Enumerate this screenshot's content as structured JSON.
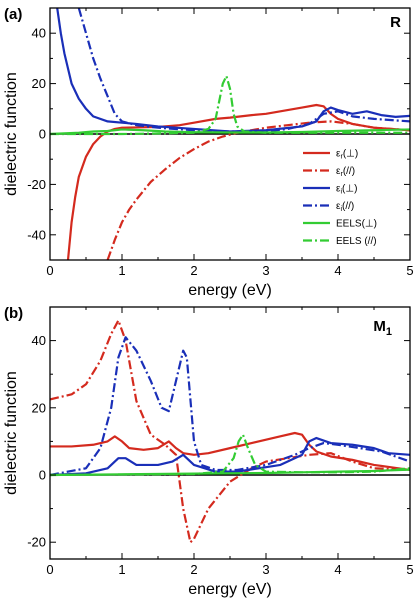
{
  "chart_data": [
    {
      "type": "line",
      "panel_label": "(a)",
      "corner_label": "R",
      "xlabel": "energy (eV)",
      "ylabel": "dielectric function",
      "xlim": [
        0,
        5
      ],
      "ylim": [
        -50,
        50
      ],
      "xticks": [
        "0",
        "1",
        "2",
        "3",
        "4",
        "5"
      ],
      "yticks": [
        "-40",
        "-20",
        "0",
        "20",
        "40"
      ],
      "legend_position": "right",
      "legend": [
        {
          "label": "εr(⊥)",
          "series": "eps_r_perp"
        },
        {
          "label": "εr(//)",
          "series": "eps_r_par"
        },
        {
          "label": "εi(⊥)",
          "series": "eps_i_perp"
        },
        {
          "label": "εi(//)",
          "series": "eps_i_par"
        },
        {
          "label": "EELS(⊥)",
          "series": "eels_perp"
        },
        {
          "label": "EELS (//)",
          "series": "eels_par"
        }
      ],
      "series": [
        {
          "key": "eps_r_perp",
          "color": "#d42a1e",
          "dash": "solid",
          "x": [
            0.25,
            0.3,
            0.35,
            0.4,
            0.5,
            0.6,
            0.7,
            0.8,
            0.9,
            1.0,
            1.2,
            1.5,
            1.8,
            2.0,
            2.3,
            2.5,
            2.8,
            3.0,
            3.3,
            3.5,
            3.7,
            3.8,
            3.9,
            4.0,
            4.2,
            4.5,
            5.0
          ],
          "y": [
            -50,
            -35,
            -25,
            -17,
            -9,
            -4,
            -1,
            1,
            2,
            2.5,
            2.6,
            2.8,
            3.5,
            4.5,
            6,
            6.5,
            7.5,
            8,
            9.5,
            10.5,
            11.5,
            11,
            8,
            6,
            4,
            2.5,
            1.5
          ]
        },
        {
          "key": "eps_r_par",
          "color": "#d42a1e",
          "dash": "dashdot",
          "x": [
            0.8,
            0.9,
            1.0,
            1.1,
            1.2,
            1.4,
            1.6,
            1.8,
            2.0,
            2.2,
            2.4,
            2.6,
            2.8,
            3.0,
            3.3,
            3.6,
            3.9,
            4.2,
            4.5,
            5.0
          ],
          "y": [
            -50,
            -42,
            -35,
            -30,
            -26,
            -19,
            -14,
            -9.5,
            -6,
            -3,
            -1,
            0.5,
            1.5,
            2.5,
            3.5,
            4.5,
            5,
            4,
            2.5,
            1.5
          ]
        },
        {
          "key": "eps_i_perp",
          "color": "#1a2fb8",
          "dash": "solid",
          "x": [
            0.1,
            0.15,
            0.2,
            0.25,
            0.3,
            0.4,
            0.5,
            0.6,
            0.8,
            1.0,
            1.2,
            1.5,
            2.0,
            2.5,
            3.0,
            3.5,
            3.7,
            3.8,
            3.9,
            4.0,
            4.2,
            4.4,
            4.6,
            4.8,
            5.0
          ],
          "y": [
            50,
            40,
            32,
            26,
            20,
            14,
            10,
            7,
            5,
            4.5,
            4,
            3,
            2,
            1,
            1.5,
            3,
            5,
            9,
            10.5,
            9.5,
            8,
            9,
            7.5,
            6.8,
            7.2
          ]
        },
        {
          "key": "eps_i_par",
          "color": "#1a2fb8",
          "dash": "dashdot",
          "x": [
            0.4,
            0.5,
            0.6,
            0.7,
            0.8,
            0.9,
            1.0,
            1.2,
            1.5,
            2.0,
            2.5,
            3.0,
            3.3,
            3.6,
            3.8,
            4.0,
            4.2,
            4.5,
            5.0
          ],
          "y": [
            50,
            40,
            30,
            22,
            15,
            8,
            5,
            3.5,
            2.5,
            1.5,
            1,
            1,
            2,
            4,
            8,
            9,
            7,
            6,
            5
          ]
        },
        {
          "key": "eels_perp",
          "color": "#33cc33",
          "dash": "solid",
          "x": [
            0,
            0.4,
            0.6,
            0.8,
            1.0,
            1.3,
            1.6,
            2.0,
            2.5,
            3.0,
            3.5,
            4.0,
            4.5,
            5.0
          ],
          "y": [
            0,
            0.5,
            1,
            1.2,
            1.8,
            1.5,
            1,
            0.7,
            0.6,
            0.6,
            0.8,
            1.2,
            1.5,
            1.8
          ]
        },
        {
          "key": "eels_par",
          "color": "#33cc33",
          "dash": "dashdot",
          "x": [
            0,
            1.0,
            1.5,
            2.0,
            2.2,
            2.3,
            2.35,
            2.4,
            2.45,
            2.5,
            2.55,
            2.6,
            2.7,
            3.0,
            3.5,
            4.0,
            4.5,
            5.0
          ],
          "y": [
            0,
            0,
            0.2,
            0.5,
            2,
            6,
            13,
            20,
            23,
            18,
            8,
            3,
            1,
            0.5,
            0.5,
            0.5,
            0.5,
            0.5
          ]
        }
      ]
    },
    {
      "type": "line",
      "panel_label": "(b)",
      "corner_label": "M1",
      "xlabel": "energy (eV)",
      "ylabel": "dielectric function",
      "xlim": [
        0,
        5
      ],
      "ylim": [
        -25,
        50
      ],
      "xticks": [
        "0",
        "1",
        "2",
        "3",
        "4",
        "5"
      ],
      "yticks": [
        "-20",
        "0",
        "20",
        "40"
      ],
      "series": [
        {
          "key": "eps_r_perp",
          "color": "#d42a1e",
          "dash": "solid",
          "x": [
            0,
            0.3,
            0.6,
            0.8,
            0.9,
            1.0,
            1.1,
            1.3,
            1.5,
            1.65,
            1.75,
            1.85,
            2.0,
            2.2,
            2.5,
            2.8,
            3.0,
            3.2,
            3.4,
            3.5,
            3.6,
            3.7,
            3.9,
            4.2,
            4.5,
            5.0
          ],
          "y": [
            8.5,
            8.5,
            9,
            10,
            11.5,
            10,
            8,
            7.5,
            8,
            10,
            8,
            6.5,
            6,
            6.5,
            8,
            9.5,
            10.5,
            11.5,
            12.5,
            12,
            9,
            7,
            5.5,
            4.5,
            3,
            1.5
          ]
        },
        {
          "key": "eps_r_par",
          "color": "#d42a1e",
          "dash": "dashdot",
          "x": [
            0,
            0.3,
            0.5,
            0.7,
            0.85,
            0.95,
            1.05,
            1.2,
            1.4,
            1.6,
            1.75,
            1.85,
            1.95,
            2.0,
            2.2,
            2.5,
            2.8,
            3.0,
            3.3,
            3.6,
            3.9,
            4.2,
            4.5,
            5.0
          ],
          "y": [
            22.5,
            24,
            27,
            34,
            42,
            46,
            40,
            22,
            12,
            9,
            6,
            -10,
            -20,
            -19,
            -10,
            -2,
            2,
            4,
            5,
            6,
            6.5,
            4,
            2,
            1.5
          ]
        },
        {
          "key": "eps_i_perp",
          "color": "#1a2fb8",
          "dash": "solid",
          "x": [
            0,
            0.5,
            0.8,
            0.95,
            1.05,
            1.2,
            1.5,
            1.7,
            1.85,
            2.0,
            2.3,
            2.6,
            2.9,
            3.2,
            3.5,
            3.6,
            3.7,
            3.9,
            4.2,
            4.5,
            4.7,
            5.0
          ],
          "y": [
            0,
            0.5,
            2,
            5,
            5,
            3,
            3,
            4,
            6,
            3,
            1,
            1,
            2,
            3,
            6,
            10,
            11,
            9.5,
            9,
            8,
            6.5,
            6
          ]
        },
        {
          "key": "eps_i_par",
          "color": "#1a2fb8",
          "dash": "dashdot",
          "x": [
            0,
            0.5,
            0.7,
            0.85,
            0.95,
            1.05,
            1.2,
            1.4,
            1.55,
            1.65,
            1.75,
            1.85,
            1.9,
            2.0,
            2.1,
            2.3,
            2.6,
            3.0,
            3.4,
            3.6,
            3.8,
            4.0,
            4.3,
            4.6,
            5.0
          ],
          "y": [
            0,
            2,
            8,
            20,
            35,
            41,
            37,
            28,
            20,
            19,
            28,
            37,
            35,
            10,
            3,
            1.5,
            1.5,
            3,
            6,
            8,
            9.5,
            9,
            8,
            7,
            4
          ]
        },
        {
          "key": "eels_perp",
          "color": "#33cc33",
          "dash": "solid",
          "x": [
            0,
            1.0,
            2.0,
            3.0,
            3.5,
            4.0,
            4.5,
            5.0
          ],
          "y": [
            0,
            0.2,
            0.4,
            0.6,
            0.8,
            1.0,
            1.2,
            1.6
          ]
        },
        {
          "key": "eels_par",
          "color": "#33cc33",
          "dash": "dashdot",
          "x": [
            0,
            2.0,
            2.4,
            2.55,
            2.62,
            2.68,
            2.75,
            2.85,
            3.0,
            3.5,
            4.0,
            4.5,
            5.0
          ],
          "y": [
            0,
            0.3,
            1,
            5,
            10,
            12,
            8,
            3,
            1,
            0.8,
            0.8,
            1,
            2
          ]
        }
      ]
    }
  ]
}
